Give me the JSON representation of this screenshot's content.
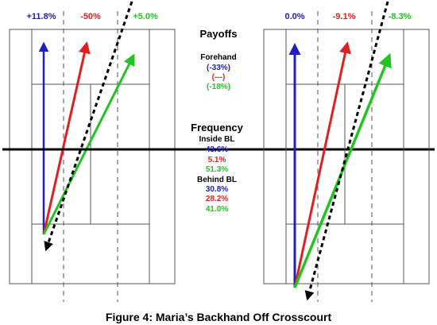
{
  "figure": {
    "caption": "Figure 4: Maria’s Backhand Off Crosscourt"
  },
  "legend": {
    "payoffs_title": "Payoffs",
    "forehand_label": "Forehand",
    "payoffs": [
      {
        "text": "(-33%)",
        "color": "#1f1fbf"
      },
      {
        "text": "(---)",
        "color": "#e02020"
      },
      {
        "text": "(-18%)",
        "color": "#22c422"
      }
    ],
    "frequency_title": "Frequency",
    "inside_label": "Inside BL",
    "inside": [
      {
        "text": "43.6%",
        "color": "#1f1fbf"
      },
      {
        "text": "5.1%",
        "color": "#e02020"
      },
      {
        "text": "51.3%",
        "color": "#22c422"
      }
    ],
    "behind_label": "Behind BL",
    "behind": [
      {
        "text": "30.8%",
        "color": "#1f1fbf"
      },
      {
        "text": "28.2%",
        "color": "#e02020"
      },
      {
        "text": "41.0%",
        "color": "#22c422"
      }
    ]
  },
  "courts": [
    {
      "name": "inside-baseline",
      "labels": [
        {
          "text": "+11.8%",
          "color": "#1f1fbf"
        },
        {
          "text": "-50%",
          "color": "#e02020"
        },
        {
          "text": "+5.0%",
          "color": "#22c422"
        }
      ]
    },
    {
      "name": "behind-baseline",
      "labels": [
        {
          "text": "0.0%",
          "color": "#1f1fbf"
        },
        {
          "text": "-9.1%",
          "color": "#e02020"
        },
        {
          "text": "-8.3%",
          "color": "#22c422"
        }
      ]
    }
  ],
  "colors": {
    "blue": "#1f1fbf",
    "red": "#e02020",
    "green": "#22c422",
    "line": "#555555",
    "net": "#000000"
  }
}
